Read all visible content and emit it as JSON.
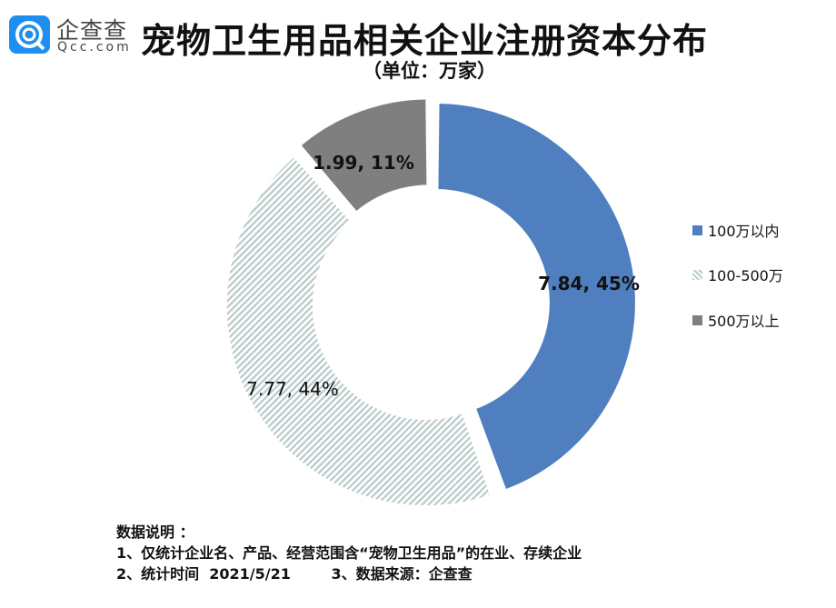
{
  "logo": {
    "cn": "企查查",
    "en": "Qcc.com"
  },
  "chart_data": {
    "type": "pie",
    "donut": true,
    "title": "宠物卫生用品相关企业注册资本分布",
    "subtitle": "（单位：万家）",
    "categories": [
      "100万以内",
      "100-500万",
      "500万以上"
    ],
    "values": [
      7.84,
      7.77,
      1.99
    ],
    "percents": [
      45,
      44,
      11
    ],
    "data_labels": [
      "7.84, 45%",
      "7.77, 44%",
      "1.99, 11%"
    ],
    "colors": [
      "#4f7fbf",
      "#b9c9c9",
      "#7f7f7f"
    ],
    "fills": [
      "solid",
      "diagonal-hatch",
      "solid"
    ],
    "legend_position": "right"
  },
  "notes": {
    "heading": "数据说明 ：",
    "line1": "1、仅统计企业名、产品、经营范围含“宠物卫生用品”的在业、存续企业",
    "line2": "2、统计时间  2021/5/21        3、数据来源：企查查"
  }
}
